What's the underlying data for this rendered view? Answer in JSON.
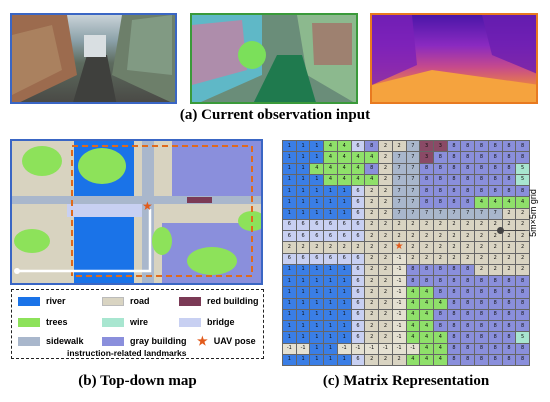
{
  "captions": {
    "a": "(a) Current observation input",
    "b": "(b) Top-down map",
    "c": "(c) Matrix Representation"
  },
  "grid_note": "5m×5m grid",
  "legend": {
    "items": [
      {
        "label": "river",
        "color": "#1a73e8"
      },
      {
        "label": "road",
        "color": "#d9d4c2"
      },
      {
        "label": "red building",
        "color": "#7b3a56"
      },
      {
        "label": "trees",
        "color": "#8de25a"
      },
      {
        "label": "wire",
        "color": "#a8e6d0"
      },
      {
        "label": "bridge",
        "color": "#c8d0f2"
      },
      {
        "label": "sidewalk",
        "color": "#a9b7cc"
      },
      {
        "label": "gray building",
        "color": "#8a8fdc"
      },
      {
        "label": "UAV pose",
        "color": "#e25b1c"
      }
    ],
    "footer": "instruction-related landmarks"
  },
  "panel_colors": {
    "a1": "#3a66c4",
    "a2": "#3a9a3a",
    "a3": "#e87a20",
    "map": "#3a66c4"
  },
  "matrix": {
    "rows": [
      "1 1 1 4 4 6 8 2 2 7 3 3 8 8 8 8 8 8",
      "1 1 1 4 4 4 4 2 7 7 3 8 8 8 8 8 8 8",
      "1 1 4 4 4 4 8 2 7 7 8 8 8 8 8 8 8 5",
      "1 1 1 4 4 4 4 2 7 7 8 8 8 8 8 8 8 5",
      "1 1 1 1 1 6 2 2 7 7 8 8 8 8 8 8 8 8",
      "1 1 1 1 1 6 2 2 7 7 8 8 8 8 4 4 4 4",
      "1 1 1 1 1 6 2 2 7 7 7 7 7 7 7 7 2 2",
      "6 6 6 6 6 6 2 2 2 2 2 2 2 2 2 2 2 2",
      "6 6 6 6 6 6 2 2 2 2 2 2 2 2 2 2 2 2",
      "2 2 2 2 2 2 2 2 2 2 2 2 2 2 2 2 2 2",
      "6 6 6 6 6 6 2 2 -1 2 2 2 2 2 2 2 2 2",
      "1 1 1 1 1 6 2 2 -1 8 8 8 8 8 2 2 2 2",
      "1 1 1 1 1 6 2 2 -1 8 8 8 8 8 8 8 8 8",
      "1 1 1 1 1 6 2 2 -1 4 4 8 8 8 8 8 8 8",
      "1 1 1 1 1 6 2 2 -1 4 4 4 8 8 8 8 8 8",
      "1 1 1 1 1 6 2 2 -1 4 4 8 8 8 8 8 8 8",
      "1 1 1 1 1 6 2 2 -1 4 4 8 8 8 8 8 8 8",
      "1 1 1 1 1 6 2 2 -1 4 4 4 8 8 8 8 8 5",
      "-1 -1 1 1 -1 -1 -1 -1 -1 -1 4 4 8 8 8 8 8 8",
      "1 1 1 1 1 6 2 2 2 4 4 4 8 8 8 8 8 8"
    ],
    "uav_cell": {
      "row": 9,
      "col": 8
    }
  }
}
